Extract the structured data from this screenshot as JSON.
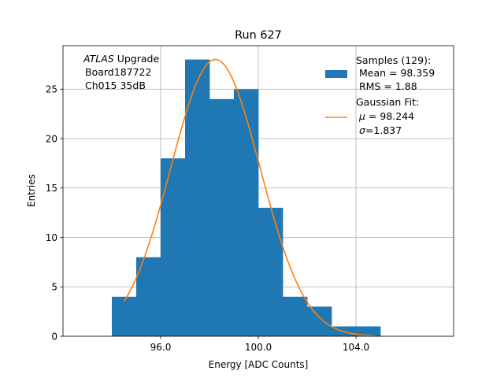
{
  "chart_data": {
    "type": "bar",
    "title": "Run 627",
    "xlabel": "Energy [ADC Counts]",
    "ylabel": "Entries",
    "xlim": [
      92.0,
      108.0
    ],
    "ylim": [
      0,
      29.4
    ],
    "grid": true,
    "x_ticks": [
      96.0,
      100.0,
      104.0
    ],
    "x_tick_labels": [
      "96.0",
      "100.0",
      "104.0"
    ],
    "y_ticks": [
      0,
      5,
      10,
      15,
      20,
      25
    ],
    "y_tick_labels": [
      "0",
      "5",
      "10",
      "15",
      "20",
      "25"
    ],
    "histogram": {
      "name": "Samples (129):",
      "color": "#1f77b4",
      "bin_edges": [
        94,
        95,
        96,
        97,
        98,
        99,
        100,
        101,
        102,
        103,
        104,
        105
      ],
      "counts": [
        4,
        8,
        18,
        28,
        24,
        25,
        13,
        4,
        3,
        1,
        1
      ]
    },
    "fit": {
      "name": "Gaussian Fit:",
      "color": "#ff7f0e",
      "mu": 98.244,
      "sigma": 1.837,
      "amplitude": 28.0,
      "x_range": [
        94.5,
        104.8
      ]
    },
    "annotation": {
      "italic_part": "ATLAS",
      "rest": " Upgrade",
      "line2": "Board187722",
      "line3": "Ch015 35dB"
    },
    "legend": {
      "position": "top-right",
      "samples_title": "Samples (129):",
      "samples_mean": "Mean = 98.359",
      "samples_rms": "RMS = 1.88",
      "fit_title": "Gaussian Fit:",
      "fit_mu_symbol": "μ",
      "fit_mu_value": " = 98.244",
      "fit_sigma_symbol": "σ",
      "fit_sigma_value": "=1.837"
    }
  }
}
